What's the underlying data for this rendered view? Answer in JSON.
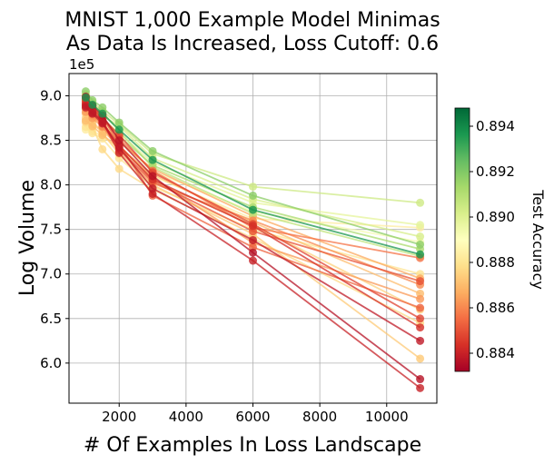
{
  "chart_data": {
    "type": "line",
    "title_lines": [
      "MNIST 1,000 Example Model Minimas",
      "As Data Is Increased, Loss Cutoff: 0.6"
    ],
    "xlabel": "# Of Examples In Loss Landscape",
    "ylabel": "Log Volume",
    "y_scale_label": "1e5",
    "x_ticks": [
      2000,
      4000,
      6000,
      8000,
      10000
    ],
    "y_ticks": [
      6.0,
      6.5,
      7.0,
      7.5,
      8.0,
      8.5,
      9.0
    ],
    "x_tick_labels": [
      "2000",
      "4000",
      "6000",
      "8000",
      "10000"
    ],
    "y_tick_labels": [
      "6.0",
      "6.5",
      "7.0",
      "7.5",
      "8.0",
      "8.5",
      "9.0"
    ],
    "xlim": [
      500,
      11500
    ],
    "ylim": [
      5.55,
      9.25
    ],
    "grid": true,
    "colorbar": {
      "label": "Test Accuracy",
      "ticks": [
        0.884,
        0.886,
        0.888,
        0.89,
        0.892,
        0.894
      ],
      "tick_labels": [
        "0.884",
        "0.886",
        "0.888",
        "0.890",
        "0.892",
        "0.894"
      ],
      "range": [
        0.8832,
        0.8948
      ],
      "colormap": "RdYlGn",
      "stops": [
        "#a50026",
        "#d73027",
        "#f46d43",
        "#fdae61",
        "#fee08b",
        "#ffffbf",
        "#d9ef8b",
        "#a6d96a",
        "#66bd63",
        "#1a9850",
        "#006837"
      ]
    },
    "x": [
      1000,
      1200,
      1500,
      2000,
      3000,
      6000,
      11000
    ],
    "series": [
      {
        "acc": 0.8937,
        "values": [
          8.98,
          8.9,
          8.8,
          8.62,
          8.28,
          7.72,
          7.22
        ]
      },
      {
        "acc": 0.8918,
        "values": [
          9.05,
          8.95,
          8.87,
          8.7,
          8.38,
          7.88,
          7.33
        ]
      },
      {
        "acc": 0.8904,
        "values": [
          9.02,
          8.93,
          8.83,
          8.68,
          8.35,
          7.98,
          7.8
        ]
      },
      {
        "acc": 0.8912,
        "values": [
          8.95,
          8.88,
          8.76,
          8.55,
          8.22,
          7.75,
          7.28
        ]
      },
      {
        "acc": 0.8902,
        "values": [
          8.92,
          8.85,
          8.78,
          8.66,
          8.3,
          7.84,
          7.42
        ]
      },
      {
        "acc": 0.8908,
        "values": [
          9.0,
          8.9,
          8.82,
          8.6,
          8.2,
          7.68,
          7.2
        ]
      },
      {
        "acc": 0.8898,
        "values": [
          8.88,
          8.82,
          8.74,
          8.58,
          8.25,
          7.8,
          7.55
        ]
      },
      {
        "acc": 0.8893,
        "values": [
          8.85,
          8.8,
          8.7,
          8.5,
          8.15,
          7.7,
          7.36
        ]
      },
      {
        "acc": 0.8883,
        "values": [
          8.62,
          8.6,
          8.55,
          8.4,
          8.1,
          7.62,
          7.52
        ]
      },
      {
        "acc": 0.888,
        "values": [
          8.65,
          8.58,
          8.52,
          8.3,
          7.98,
          7.5,
          7.0
        ]
      },
      {
        "acc": 0.8877,
        "values": [
          8.7,
          8.65,
          8.4,
          8.18,
          7.95,
          7.4,
          6.45
        ]
      },
      {
        "acc": 0.8875,
        "values": [
          8.75,
          8.68,
          8.6,
          8.45,
          8.05,
          7.55,
          6.6
        ]
      },
      {
        "acc": 0.8873,
        "values": [
          8.8,
          8.72,
          8.58,
          8.35,
          8.0,
          7.45,
          6.05
        ]
      },
      {
        "acc": 0.887,
        "values": [
          8.72,
          8.66,
          8.56,
          8.42,
          8.12,
          7.58,
          6.78
        ]
      },
      {
        "acc": 0.8866,
        "values": [
          8.9,
          8.78,
          8.68,
          8.48,
          8.18,
          7.65,
          6.95
        ]
      },
      {
        "acc": 0.8863,
        "values": [
          8.82,
          8.75,
          8.65,
          8.44,
          8.08,
          7.35,
          6.72
        ]
      },
      {
        "acc": 0.886,
        "values": [
          8.86,
          8.79,
          8.66,
          8.38,
          8.02,
          7.6,
          6.88
        ]
      },
      {
        "acc": 0.8856,
        "values": [
          8.93,
          8.84,
          8.74,
          8.52,
          8.16,
          7.52,
          7.18
        ]
      },
      {
        "acc": 0.8853,
        "values": [
          8.97,
          8.87,
          8.76,
          8.46,
          7.88,
          7.3,
          6.62
        ]
      },
      {
        "acc": 0.885,
        "values": [
          8.94,
          8.85,
          8.72,
          8.4,
          8.04,
          7.48,
          6.92
        ]
      },
      {
        "acc": 0.8847,
        "values": [
          8.96,
          8.86,
          8.75,
          8.56,
          8.14,
          7.56,
          6.5
        ]
      },
      {
        "acc": 0.8843,
        "values": [
          8.91,
          8.83,
          8.7,
          8.44,
          8.06,
          7.54,
          6.4
        ]
      },
      {
        "acc": 0.884,
        "values": [
          8.89,
          8.81,
          8.71,
          8.36,
          7.9,
          7.15,
          5.72
        ]
      },
      {
        "acc": 0.8836,
        "values": [
          8.99,
          8.89,
          8.78,
          8.5,
          8.1,
          7.24,
          5.82
        ]
      },
      {
        "acc": 0.8838,
        "values": [
          8.87,
          8.8,
          8.69,
          8.42,
          7.96,
          7.38,
          6.25
        ]
      }
    ]
  }
}
